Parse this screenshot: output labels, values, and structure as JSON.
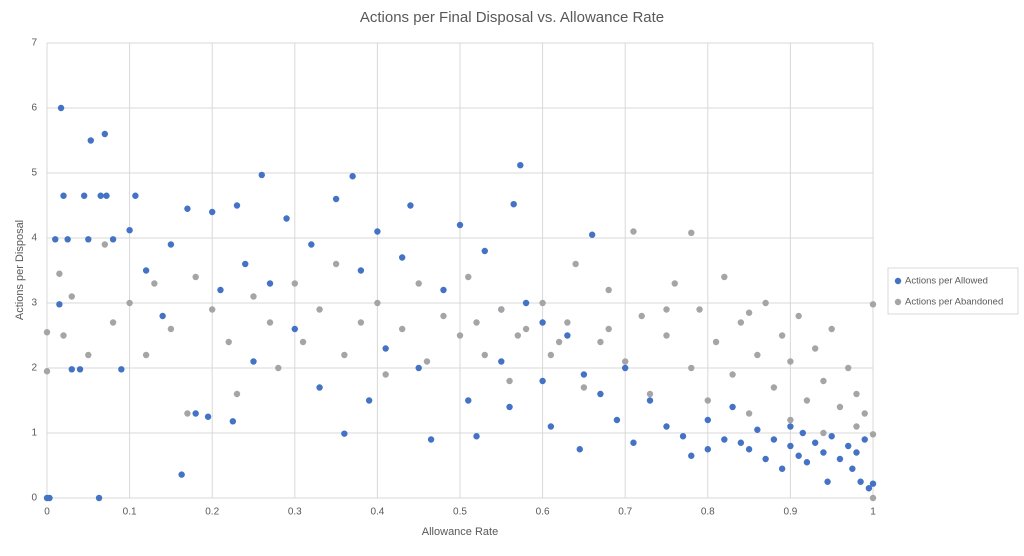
{
  "chart_data": {
    "type": "scatter",
    "title": "Actions per Final Disposal vs. Allowance Rate",
    "x_label": "Allowance Rate",
    "y_label": "Actions per Disposal",
    "xlim": [
      0,
      1
    ],
    "xticks": [
      0,
      0.1,
      0.2,
      0.3,
      0.4,
      0.5,
      0.6,
      0.7,
      0.8,
      0.9,
      1
    ],
    "ylim": [
      0,
      7
    ],
    "yticks": [
      0,
      1,
      2,
      3,
      4,
      5,
      6,
      7
    ],
    "grid": true,
    "legend": "right",
    "series": [
      {
        "name": "Actions per Allowed",
        "color": "#4472c4",
        "x": [
          0.017,
          0.053,
          0.07,
          0.02,
          0.045,
          0.065,
          0.072,
          0.107,
          0.26,
          0.37,
          0.573,
          0.565,
          0.163,
          0.063,
          0,
          0.003,
          0.01,
          0.025,
          0.05,
          0.08,
          0.015,
          0.03,
          0.04,
          0.09,
          0.1,
          0.12,
          0.14,
          0.15,
          0.17,
          0.18,
          0.195,
          0.2,
          0.21,
          0.225,
          0.23,
          0.24,
          0.25,
          0.27,
          0.29,
          0.3,
          0.32,
          0.33,
          0.35,
          0.36,
          0.38,
          0.39,
          0.4,
          0.41,
          0.43,
          0.44,
          0.45,
          0.465,
          0.48,
          0.5,
          0.51,
          0.52,
          0.53,
          0.55,
          0.56,
          0.58,
          0.6,
          0.61,
          0.63,
          0.645,
          0.66,
          0.67,
          0.69,
          0.7,
          0.71,
          0.73,
          0.75,
          0.77,
          0.78,
          0.8,
          0.82,
          0.83,
          0.85,
          0.86,
          0.87,
          0.88,
          0.89,
          0.9,
          0.91,
          0.915,
          0.92,
          0.93,
          0.94,
          0.945,
          0.95,
          0.96,
          0.97,
          0.975,
          0.98,
          0.985,
          0.99,
          0.995,
          1,
          0.8,
          0.84,
          0.9,
          0.65,
          0.6,
          0.55
        ],
        "values": [
          6,
          5.5,
          5.6,
          4.65,
          4.65,
          4.65,
          4.65,
          4.65,
          4.97,
          4.95,
          5.12,
          4.52,
          0.36,
          0,
          0,
          0,
          3.98,
          3.98,
          3.98,
          3.98,
          2.98,
          1.98,
          1.98,
          1.98,
          4.12,
          3.5,
          2.8,
          3.9,
          4.45,
          1.3,
          1.25,
          4.4,
          3.2,
          1.18,
          4.5,
          3.6,
          2.1,
          3.3,
          4.3,
          2.6,
          3.9,
          1.7,
          4.6,
          0.99,
          3.5,
          1.5,
          4.1,
          2.3,
          3.7,
          4.5,
          2.0,
          0.9,
          3.2,
          4.2,
          1.5,
          0.95,
          3.8,
          2.1,
          1.4,
          3.0,
          1.8,
          1.1,
          2.5,
          0.75,
          4.05,
          1.6,
          1.2,
          2.0,
          0.85,
          1.5,
          1.1,
          0.95,
          0.65,
          1.2,
          0.9,
          1.4,
          0.75,
          1.05,
          0.6,
          0.9,
          0.45,
          0.8,
          0.65,
          1.0,
          0.55,
          0.85,
          0.7,
          0.25,
          0.95,
          0.6,
          0.8,
          0.45,
          0.7,
          0.25,
          0.9,
          0.15,
          0.22,
          0.75,
          0.85,
          1.1,
          1.9,
          2.7,
          2.9
        ]
      },
      {
        "name": "Actions per Abandoned",
        "color": "#a5a5a5",
        "x": [
          0.015,
          0.02,
          0.03,
          0,
          0,
          0.05,
          0.07,
          0.08,
          0.1,
          0.12,
          0.13,
          0.15,
          0.17,
          0.18,
          0.2,
          0.22,
          0.23,
          0.25,
          0.27,
          0.28,
          0.3,
          0.31,
          0.33,
          0.35,
          0.36,
          0.38,
          0.4,
          0.41,
          0.43,
          0.45,
          0.46,
          0.48,
          0.5,
          0.51,
          0.53,
          0.55,
          0.56,
          0.58,
          0.6,
          0.61,
          0.63,
          0.64,
          0.65,
          0.67,
          0.68,
          0.7,
          0.71,
          0.72,
          0.73,
          0.75,
          0.76,
          0.78,
          0.78,
          0.79,
          0.8,
          0.81,
          0.82,
          0.83,
          0.84,
          0.85,
          0.86,
          0.87,
          0.88,
          0.89,
          0.9,
          0.9,
          0.91,
          0.92,
          0.93,
          0.94,
          0.94,
          0.95,
          0.96,
          0.97,
          0.98,
          0.98,
          0.99,
          1,
          1,
          1,
          0.85,
          0.75,
          0.68,
          0.62,
          0.57,
          0.52
        ],
        "values": [
          3.45,
          2.5,
          3.1,
          2.55,
          1.95,
          2.2,
          3.9,
          2.7,
          3.0,
          2.2,
          3.3,
          2.6,
          1.3,
          3.4,
          2.9,
          2.4,
          1.6,
          3.1,
          2.7,
          2.0,
          3.3,
          2.4,
          2.9,
          3.6,
          2.2,
          2.7,
          3.0,
          1.9,
          2.6,
          3.3,
          2.1,
          2.8,
          2.5,
          3.4,
          2.2,
          2.9,
          1.8,
          2.6,
          3.0,
          2.2,
          2.7,
          3.6,
          1.7,
          2.4,
          3.2,
          2.1,
          4.1,
          2.8,
          1.6,
          2.5,
          3.3,
          2.0,
          4.08,
          2.9,
          1.5,
          2.4,
          3.4,
          1.9,
          2.7,
          1.3,
          2.2,
          3.0,
          1.7,
          2.5,
          1.2,
          2.1,
          2.8,
          1.5,
          2.3,
          1.0,
          1.8,
          2.6,
          1.4,
          2.0,
          1.1,
          1.6,
          1.3,
          0.98,
          2.98,
          0,
          2.85,
          2.9,
          2.6,
          2.4,
          2.5,
          2.7
        ]
      }
    ]
  }
}
